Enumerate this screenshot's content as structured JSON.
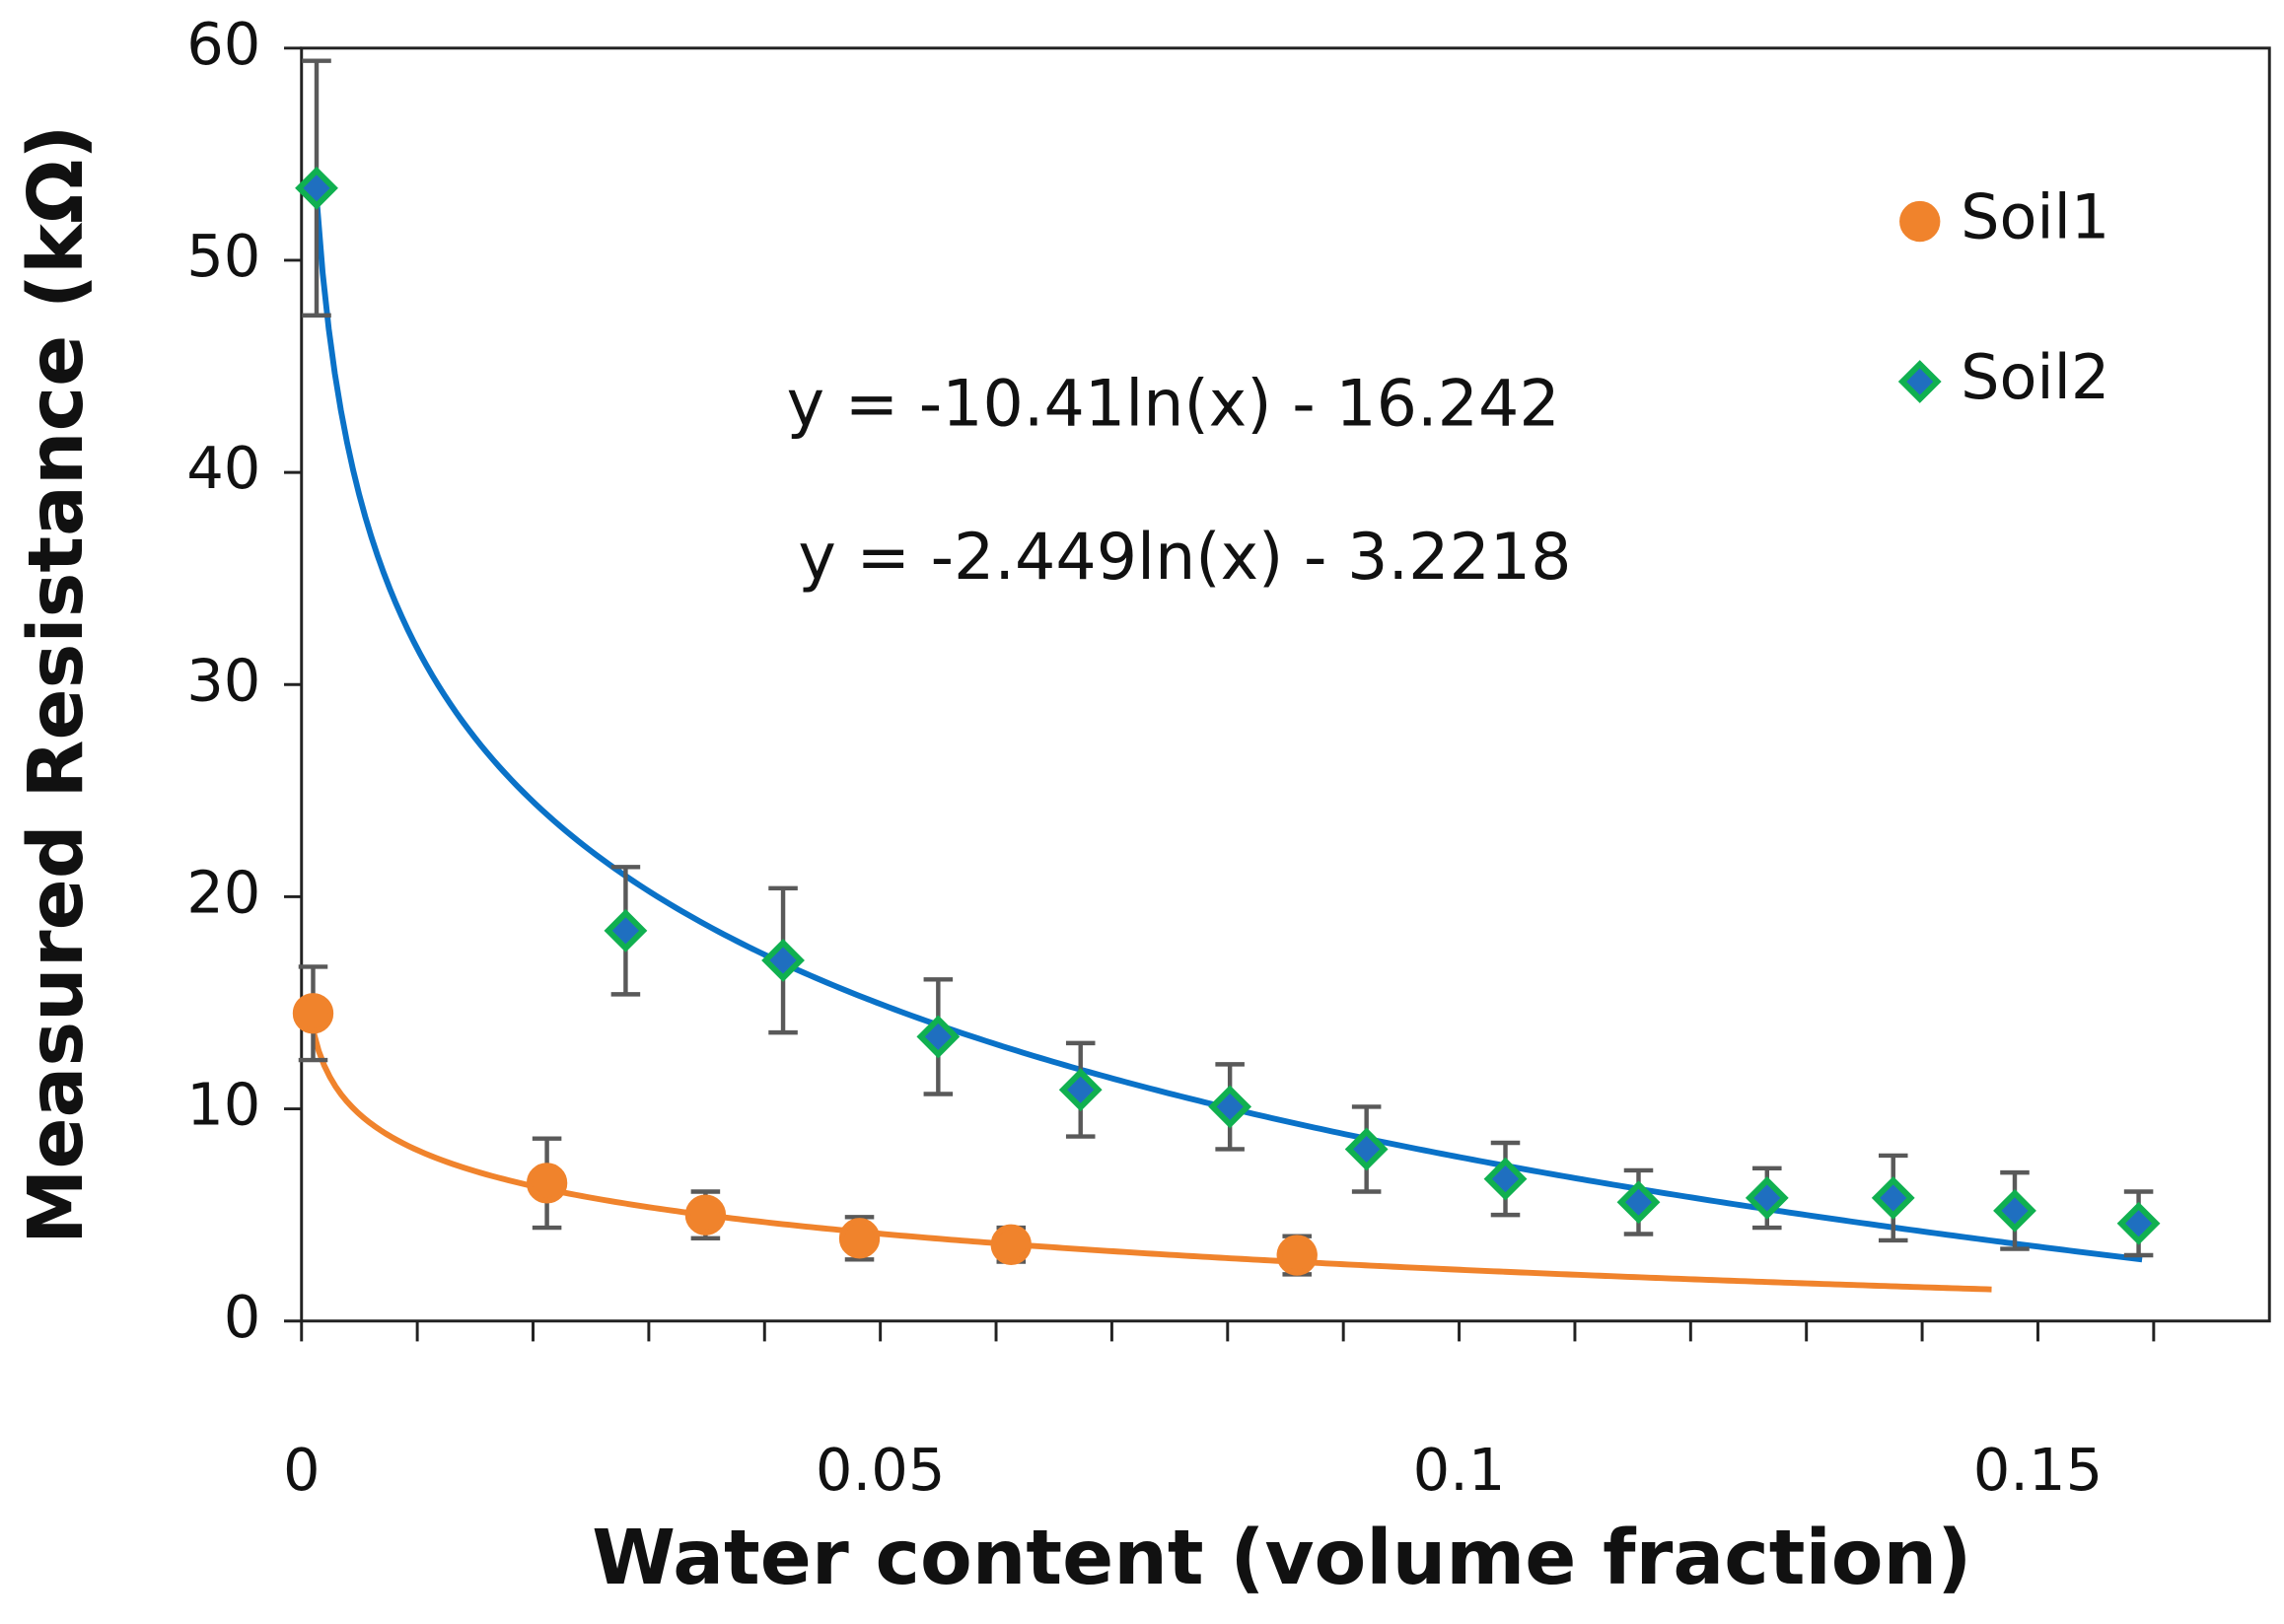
{
  "chart_data": {
    "type": "scatter",
    "x_label": "Water content (volume fraction)",
    "y_label": "Measured Resistance (kΩ)",
    "xlim": [
      0,
      0.17
    ],
    "ylim": [
      0,
      60
    ],
    "xticks": [
      0,
      0.05,
      0.1,
      0.15
    ],
    "xminorticks": [
      0.01,
      0.02,
      0.03,
      0.04,
      0.06,
      0.07,
      0.08,
      0.09,
      0.11,
      0.12,
      0.13,
      0.14,
      0.16
    ],
    "yticks": [
      0,
      10,
      20,
      30,
      40,
      50,
      60
    ],
    "grid": false,
    "legend": "upper right",
    "error_color": "#595959",
    "series": [
      {
        "name": "Soil1",
        "marker": "circle",
        "color": "#f0832c",
        "edge": "#f0832c",
        "x": [
          0.001,
          0.0212,
          0.0349,
          0.0482,
          0.0613,
          0.086
        ],
        "values": [
          14.5,
          6.5,
          5.0,
          3.9,
          3.6,
          3.1
        ],
        "errors": [
          2.2,
          2.1,
          1.1,
          1.0,
          0.8,
          0.9
        ],
        "trendline": {
          "label": "y = -2.449ln(x) - 3.2218",
          "coef": -2.449,
          "intercept": -3.2218,
          "xrange": [
            0.001,
            0.146
          ],
          "color": "#f0832c"
        }
      },
      {
        "name": "Soil2",
        "marker": "diamond",
        "color": "#1f6fc0",
        "edge": "#10b050",
        "x": [
          0.0013,
          0.028,
          0.0416,
          0.055,
          0.0673,
          0.0802,
          0.092,
          0.104,
          0.1155,
          0.1266,
          0.1375,
          0.148,
          0.1587
        ],
        "values": [
          53.4,
          18.4,
          17.0,
          13.4,
          10.9,
          10.1,
          8.1,
          6.7,
          5.6,
          5.8,
          5.8,
          5.2,
          4.6
        ],
        "errors": [
          6.0,
          3.0,
          3.4,
          2.7,
          2.2,
          2.0,
          2.0,
          1.7,
          1.5,
          1.4,
          2.0,
          1.8,
          1.5
        ],
        "trendline": {
          "label": "y = -10.41ln(x) - 16.242",
          "coef": -10.41,
          "intercept": -16.242,
          "xrange": [
            0.0013,
            0.159
          ],
          "color": "#0a72c8"
        }
      }
    ]
  }
}
